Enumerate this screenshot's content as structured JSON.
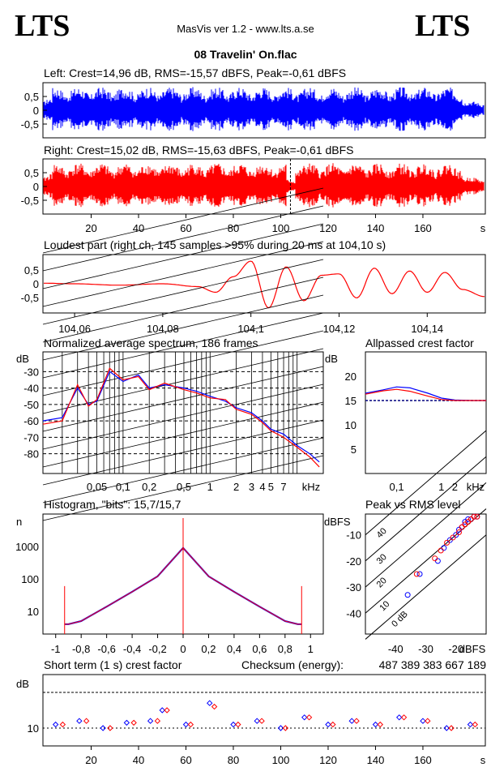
{
  "header": {
    "logo_left": "LTS",
    "logo_right": "LTS",
    "app_title": "MasVis ver 1.2 - www.lts.a.se",
    "file_name": "08 Travelin' On.flac"
  },
  "left_channel": {
    "title": "Left: Crest=14,96 dB, RMS=-15,57 dBFS, Peak=-0,61 dBFS",
    "color": "#0000ff"
  },
  "right_channel": {
    "title": "Right: Crest=15,02 dB, RMS=-15,63 dBFS, Peak=-0,61 dBFS",
    "color": "#ff0000"
  },
  "loudest": {
    "title": "Loudest part (right ch, 145 samples >95% during 20 ms at 104,10 s)"
  },
  "spectrum": {
    "title": "Normalized average spectrum, 186 frames"
  },
  "allpass": {
    "title": "Allpassed crest factor"
  },
  "histogram": {
    "title": "Histogram, \"bits\": 15,7/15,7"
  },
  "peak_rms": {
    "title": "Peak vs RMS level"
  },
  "crest": {
    "title": "Short term (1 s) crest factor",
    "checksum_label": "Checksum (energy):",
    "checksum_value": "487 389 383 667 189"
  },
  "chart_data": [
    {
      "type": "line",
      "id": "left_waveform",
      "ylim": [
        -1,
        1
      ],
      "y_ticks": [
        "0,5",
        "0",
        "-0,5"
      ],
      "x_unit": "s",
      "series": [
        {
          "name": "Left",
          "color": "#0000ff"
        }
      ]
    },
    {
      "type": "line",
      "id": "right_waveform",
      "ylim": [
        -1,
        1
      ],
      "y_ticks": [
        "0,5",
        "0",
        "-0,5"
      ],
      "x_ticks": [
        "20",
        "40",
        "60",
        "80",
        "100",
        "120",
        "140",
        "160"
      ],
      "x_unit": "s",
      "marker_time": 104.1,
      "series": [
        {
          "name": "Right",
          "color": "#ff0000"
        }
      ]
    },
    {
      "type": "line",
      "id": "loudest_part",
      "ylim": [
        -1,
        1
      ],
      "y_ticks": [
        "0,5",
        "0",
        "-0,5"
      ],
      "x_ticks": [
        "104,06",
        "104,08",
        "104,1",
        "104,12",
        "104,14"
      ],
      "xlim": [
        104.053,
        104.153
      ],
      "x": [
        104.053,
        104.06,
        104.07,
        104.08,
        104.088,
        104.092,
        104.096,
        104.1,
        104.104,
        104.108,
        104.112,
        104.116,
        104.12,
        104.124,
        104.128,
        104.132,
        104.136,
        104.14,
        104.144,
        104.148,
        104.153
      ],
      "values": [
        0.02,
        0.0,
        -0.05,
        0.0,
        -0.1,
        -0.3,
        0.25,
        0.8,
        -0.85,
        0.6,
        -0.6,
        0.3,
        0.35,
        -0.5,
        0.55,
        -0.35,
        0.45,
        -0.3,
        0.4,
        -0.2,
        -0.45
      ]
    },
    {
      "type": "line",
      "id": "average_spectrum",
      "ylabel": "dB",
      "y_ticks": [
        "-30",
        "-40",
        "-50",
        "-60",
        "-70",
        "-80"
      ],
      "x_ticks": [
        "0,05",
        "0,1",
        "0,2",
        "0,5",
        "1",
        "2",
        "3",
        "4",
        "5",
        "7"
      ],
      "x_unit": "kHz",
      "ylim": [
        -92,
        -18
      ],
      "x": [
        0.012,
        0.02,
        0.03,
        0.04,
        0.05,
        0.07,
        0.1,
        0.15,
        0.2,
        0.3,
        0.5,
        0.7,
        1,
        1.5,
        2,
        3,
        4,
        5,
        7,
        10,
        14,
        18
      ],
      "series": [
        {
          "name": "Left",
          "color": "#0000ff",
          "values": [
            -60,
            -58,
            -40,
            -50,
            -48,
            -30,
            -36,
            -32,
            -40,
            -38,
            -40,
            -42,
            -45,
            -48,
            -52,
            -55,
            -60,
            -65,
            -68,
            -75,
            -80,
            -85
          ]
        },
        {
          "name": "Right",
          "color": "#ff0000",
          "values": [
            -62,
            -60,
            -38,
            -51,
            -47,
            -28,
            -35,
            -33,
            -41,
            -37,
            -41,
            -43,
            -46,
            -47,
            -53,
            -56,
            -61,
            -66,
            -70,
            -76,
            -82,
            -88
          ]
        }
      ]
    },
    {
      "type": "line",
      "id": "allpassed_crest_factor",
      "ylabel": "dB",
      "y_ticks": [
        "20",
        "15",
        "10",
        "5"
      ],
      "x_ticks": [
        "0,1",
        "1",
        "2",
        "kHz"
      ],
      "ylim": [
        0,
        25
      ],
      "baseline": 15,
      "x": [
        0.02,
        0.05,
        0.1,
        0.2,
        0.5,
        1,
        2,
        5,
        10
      ],
      "series": [
        {
          "name": "Left",
          "color": "#0000ff",
          "values": [
            16.5,
            17.2,
            17.8,
            17.6,
            16.5,
            15.5,
            15.1,
            15.0,
            15.0
          ]
        },
        {
          "name": "Right",
          "color": "#ff0000",
          "values": [
            16.3,
            17.0,
            17.3,
            16.9,
            15.9,
            15.2,
            15.0,
            15.0,
            15.0
          ]
        }
      ]
    },
    {
      "type": "line",
      "id": "histogram",
      "ylabel": "n",
      "y_ticks": [
        "1000",
        "100",
        "10"
      ],
      "x_ticks": [
        "-1",
        "-0,8",
        "-0,6",
        "-0,4",
        "-0,2",
        "0",
        "0,2",
        "0,4",
        "0,6",
        "0,8",
        "1"
      ],
      "x": [
        -0.93,
        -0.9,
        -0.8,
        -0.6,
        -0.4,
        -0.2,
        0,
        0.2,
        0.4,
        0.6,
        0.8,
        0.9,
        0.93
      ],
      "values": [
        4,
        4,
        5,
        14,
        40,
        120,
        900,
        120,
        40,
        14,
        5,
        4,
        4
      ],
      "edge_spikes": [
        -0.93,
        0.93
      ]
    },
    {
      "type": "scatter",
      "id": "peak_vs_rms",
      "ylabel": "dBFS",
      "y_ticks": [
        "-10",
        "-20",
        "-30",
        "-40"
      ],
      "x_ticks": [
        "-40",
        "-30",
        "-20"
      ],
      "x_unit": "dBFS",
      "diagonal_labels": [
        "40",
        "30",
        "20",
        "10",
        "0 dB"
      ],
      "xlim": [
        -50,
        -10
      ],
      "ylim": [
        -48,
        -2
      ],
      "series": [
        {
          "name": "Left",
          "color": "#0000ff",
          "x": [
            -22,
            -20,
            -19,
            -18,
            -17,
            -16,
            -15,
            -14,
            -13,
            -24,
            -26,
            -32,
            -36
          ],
          "y": [
            -12,
            -10,
            -8,
            -7,
            -5,
            -4,
            -4,
            -3,
            -3,
            -15,
            -20,
            -25,
            -33
          ]
        },
        {
          "name": "Right",
          "color": "#ff0000",
          "x": [
            -23,
            -21,
            -19,
            -18,
            -17,
            -16,
            -15,
            -14,
            -13,
            -25,
            -27,
            -33
          ],
          "y": [
            -13,
            -11,
            -9,
            -7,
            -6,
            -5,
            -4,
            -3,
            -3,
            -16,
            -19,
            -25
          ]
        }
      ]
    },
    {
      "type": "scatter",
      "id": "short_term_crest",
      "ylabel": "dB",
      "y_ticks": [
        "10"
      ],
      "x_ticks": [
        "20",
        "40",
        "60",
        "80",
        "100",
        "120",
        "140",
        "160"
      ],
      "x_unit": "s",
      "ylim": [
        5,
        25
      ],
      "reference_line": 20,
      "series": [
        {
          "name": "Left",
          "color": "#0000ff",
          "x": [
            5,
            15,
            25,
            35,
            45,
            50,
            60,
            70,
            80,
            90,
            100,
            110,
            120,
            130,
            140,
            150,
            160,
            170,
            180
          ],
          "y": [
            11,
            12,
            10,
            11.5,
            12,
            15,
            11,
            17,
            11,
            12,
            10,
            13,
            11,
            12,
            11,
            13,
            12,
            10,
            11
          ]
        },
        {
          "name": "Right",
          "color": "#ff0000",
          "x": [
            8,
            18,
            28,
            38,
            48,
            52,
            62,
            72,
            82,
            92,
            102,
            112,
            122,
            132,
            142,
            152,
            162,
            172,
            182
          ],
          "y": [
            11,
            12,
            10,
            11.5,
            12,
            15,
            11,
            16,
            11,
            12,
            10,
            13,
            11,
            12,
            11,
            13,
            12,
            10,
            11
          ]
        }
      ]
    }
  ]
}
